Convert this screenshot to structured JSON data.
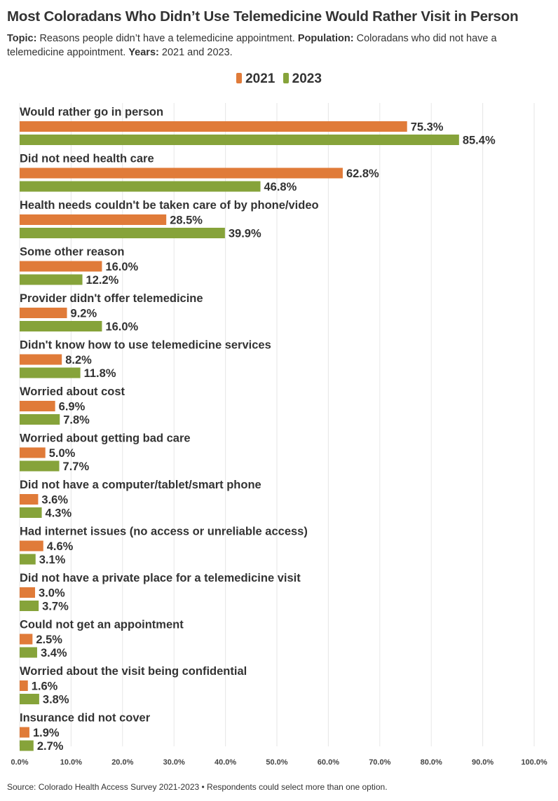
{
  "header": {
    "title": "Most Coloradans Who Didn’t Use Telemedicine Would Rather Visit in Person",
    "topic_label": "Topic:",
    "topic_text": "Reasons people didn’t have a telemedicine appointment.",
    "population_label": "Population:",
    "population_text": "Coloradans who did not have a telemedicine appointment.",
    "years_label": "Years:",
    "years_text": "2021 and 2023."
  },
  "legend": [
    {
      "name": "2021",
      "color": "#e07b39"
    },
    {
      "name": "2023",
      "color": "#86a33a"
    }
  ],
  "chart_data": {
    "type": "bar",
    "orientation": "horizontal",
    "categories": [
      "Would rather go in person",
      "Did not need health care",
      "Health needs couldn't be taken care of by phone/video",
      "Some other reason",
      "Provider didn't offer telemedicine",
      "Didn't know how to use telemedicine services",
      "Worried about cost",
      "Worried about getting bad care",
      "Did not have a computer/tablet/smart phone",
      "Had internet issues (no access or unreliable access)",
      "Did not have a private place for a telemedicine visit",
      "Could not get an appointment",
      "Worried about the visit being confidential",
      "Insurance did not cover"
    ],
    "series": [
      {
        "name": "2021",
        "color": "#e07b39",
        "values": [
          75.3,
          62.8,
          28.5,
          16.0,
          9.2,
          8.2,
          6.9,
          5.0,
          3.6,
          4.6,
          3.0,
          2.5,
          1.6,
          1.9
        ]
      },
      {
        "name": "2023",
        "color": "#86a33a",
        "values": [
          85.4,
          46.8,
          39.9,
          12.2,
          16.0,
          11.8,
          7.8,
          7.7,
          4.3,
          3.1,
          3.7,
          3.4,
          3.8,
          2.7
        ]
      }
    ],
    "xlim": [
      0,
      100
    ],
    "xticks": [
      0,
      10,
      20,
      30,
      40,
      50,
      60,
      70,
      80,
      90,
      100
    ],
    "value_suffix": "%",
    "grid": "vertical",
    "legend_position": "top-center"
  },
  "footer": {
    "source": "Source: Colorado Health Access Survey 2021-2023 • Respondents could select more than one option."
  }
}
